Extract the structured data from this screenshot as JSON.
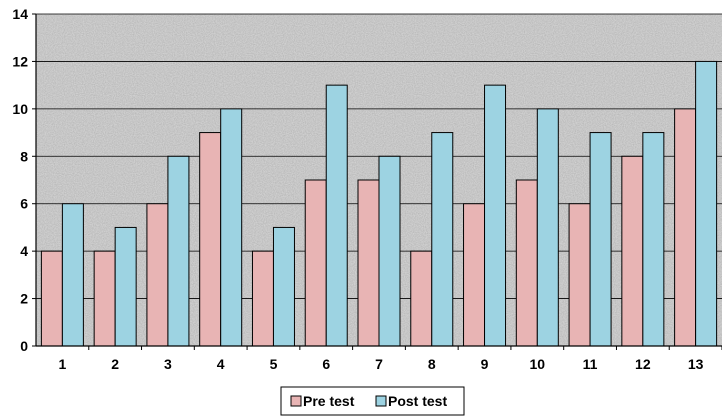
{
  "chart_data": {
    "type": "bar",
    "categories": [
      "1",
      "2",
      "3",
      "4",
      "5",
      "6",
      "7",
      "8",
      "9",
      "10",
      "11",
      "12",
      "13"
    ],
    "series": [
      {
        "name": "Pre test",
        "color": "#e8b4b4",
        "values": [
          4,
          4,
          6,
          9,
          4,
          7,
          7,
          4,
          6,
          7,
          6,
          8,
          10
        ]
      },
      {
        "name": "Post test",
        "color": "#9dd3e2",
        "values": [
          6,
          5,
          8,
          10,
          5,
          11,
          8,
          9,
          11,
          10,
          9,
          9,
          12
        ]
      }
    ],
    "ylim": [
      0,
      14
    ],
    "yticks": [
      "0",
      "2",
      "4",
      "6",
      "8",
      "10",
      "12",
      "14"
    ],
    "grid": true,
    "legend_position": "bottom",
    "title": "",
    "xlabel": "",
    "ylabel": ""
  }
}
